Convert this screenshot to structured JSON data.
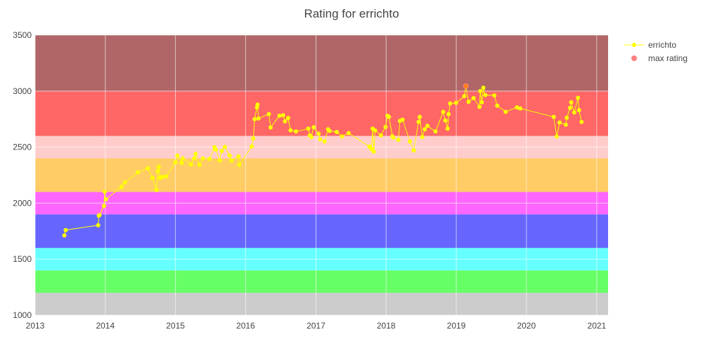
{
  "chart_data": {
    "type": "scatter",
    "title": "Rating for errichto",
    "xlabel": "",
    "ylabel": "",
    "xlim": [
      "2013-01-01",
      "2021-03-01"
    ],
    "ylim": [
      1000,
      3500
    ],
    "x_ticks": [
      "2013",
      "2014",
      "2015",
      "2016",
      "2017",
      "2018",
      "2019",
      "2020",
      "2021"
    ],
    "y_ticks": [
      1000,
      1500,
      2000,
      2500,
      3000,
      3500
    ],
    "grid": true,
    "legend_position": "top-right",
    "rating_bands": [
      {
        "from": 1000,
        "to": 1200,
        "color": "#cccccc"
      },
      {
        "from": 1200,
        "to": 1400,
        "color": "#66ff66"
      },
      {
        "from": 1400,
        "to": 1600,
        "color": "#66ffff"
      },
      {
        "from": 1600,
        "to": 1900,
        "color": "#6666ff"
      },
      {
        "from": 1900,
        "to": 2100,
        "color": "#ff66ff"
      },
      {
        "from": 2100,
        "to": 2400,
        "color": "#ffcc66"
      },
      {
        "from": 2400,
        "to": 2600,
        "color": "#ffcccc"
      },
      {
        "from": 2600,
        "to": 3000,
        "color": "#ff6666"
      },
      {
        "from": 3000,
        "to": 3500,
        "color": "#b06666"
      }
    ],
    "series": [
      {
        "name": "errichto",
        "color": "#ffff00",
        "points": [
          [
            "2013-06-02",
            1712
          ],
          [
            "2013-06-09",
            1760
          ],
          [
            "2013-11-25",
            1803
          ],
          [
            "2013-11-28",
            1888
          ],
          [
            "2013-12-02",
            1893
          ],
          [
            "2013-12-25",
            1975
          ],
          [
            "2013-12-29",
            2102
          ],
          [
            "2014-01-05",
            2035
          ],
          [
            "2014-03-26",
            2145
          ],
          [
            "2014-04-13",
            2185
          ],
          [
            "2014-06-19",
            2275
          ],
          [
            "2014-08-10",
            2310
          ],
          [
            "2014-09-03",
            2225
          ],
          [
            "2014-09-24",
            2118
          ],
          [
            "2014-10-01",
            2285
          ],
          [
            "2014-10-06",
            2325
          ],
          [
            "2014-10-12",
            2225
          ],
          [
            "2014-10-24",
            2235
          ],
          [
            "2014-11-14",
            2238
          ],
          [
            "2015-01-01",
            2365
          ],
          [
            "2015-01-11",
            2425
          ],
          [
            "2015-02-03",
            2360
          ],
          [
            "2015-02-08",
            2400
          ],
          [
            "2015-03-23",
            2345
          ],
          [
            "2015-04-08",
            2400
          ],
          [
            "2015-04-16",
            2440
          ],
          [
            "2015-05-06",
            2342
          ],
          [
            "2015-05-24",
            2400
          ],
          [
            "2015-06-27",
            2395
          ],
          [
            "2015-07-23",
            2500
          ],
          [
            "2015-07-30",
            2478
          ],
          [
            "2015-08-19",
            2382
          ],
          [
            "2015-08-30",
            2465
          ],
          [
            "2015-09-15",
            2502
          ],
          [
            "2015-10-10",
            2425
          ],
          [
            "2015-10-19",
            2380
          ],
          [
            "2015-11-25",
            2418
          ],
          [
            "2015-11-29",
            2342
          ],
          [
            "2016-02-02",
            2505
          ],
          [
            "2016-02-10",
            2578
          ],
          [
            "2016-02-17",
            2750
          ],
          [
            "2016-02-29",
            2855
          ],
          [
            "2016-03-03",
            2880
          ],
          [
            "2016-03-08",
            2755
          ],
          [
            "2016-05-01",
            2795
          ],
          [
            "2016-05-10",
            2675
          ],
          [
            "2016-06-25",
            2780
          ],
          [
            "2016-07-14",
            2785
          ],
          [
            "2016-07-24",
            2730
          ],
          [
            "2016-08-09",
            2760
          ],
          [
            "2016-08-22",
            2650
          ],
          [
            "2016-09-19",
            2640
          ],
          [
            "2016-11-22",
            2665
          ],
          [
            "2016-11-30",
            2605
          ],
          [
            "2016-12-08",
            2590
          ],
          [
            "2016-12-20",
            2678
          ],
          [
            "2017-01-15",
            2620
          ],
          [
            "2017-01-22",
            2570
          ],
          [
            "2017-02-15",
            2550
          ],
          [
            "2017-03-05",
            2660
          ],
          [
            "2017-03-13",
            2645
          ],
          [
            "2017-04-19",
            2635
          ],
          [
            "2017-05-17",
            2595
          ],
          [
            "2017-06-20",
            2625
          ],
          [
            "2017-10-06",
            2505
          ],
          [
            "2017-10-17",
            2482
          ],
          [
            "2017-10-23",
            2665
          ],
          [
            "2017-10-29",
            2460
          ],
          [
            "2017-11-05",
            2650
          ],
          [
            "2017-12-05",
            2605
          ],
          [
            "2017-12-29",
            2680
          ],
          [
            "2018-01-08",
            2780
          ],
          [
            "2018-01-16",
            2770
          ],
          [
            "2018-02-03",
            2597
          ],
          [
            "2018-02-07",
            2585
          ],
          [
            "2018-03-06",
            2565
          ],
          [
            "2018-03-14",
            2735
          ],
          [
            "2018-03-28",
            2745
          ],
          [
            "2018-05-05",
            2550
          ],
          [
            "2018-05-25",
            2470
          ],
          [
            "2018-06-19",
            2725
          ],
          [
            "2018-06-25",
            2770
          ],
          [
            "2018-07-08",
            2590
          ],
          [
            "2018-07-21",
            2660
          ],
          [
            "2018-08-04",
            2690
          ],
          [
            "2018-09-15",
            2640
          ],
          [
            "2018-10-25",
            2815
          ],
          [
            "2018-11-05",
            2738
          ],
          [
            "2018-11-17",
            2665
          ],
          [
            "2018-11-22",
            2795
          ],
          [
            "2018-11-30",
            2890
          ],
          [
            "2018-12-31",
            2895
          ],
          [
            "2019-02-12",
            2955
          ],
          [
            "2019-02-20",
            3045
          ],
          [
            "2019-03-06",
            2905
          ],
          [
            "2019-04-01",
            2938
          ],
          [
            "2019-05-02",
            2860
          ],
          [
            "2019-05-06",
            3000
          ],
          [
            "2019-05-14",
            2900
          ],
          [
            "2019-05-22",
            3030
          ],
          [
            "2019-06-01",
            2965
          ],
          [
            "2019-07-18",
            2962
          ],
          [
            "2019-08-02",
            2870
          ],
          [
            "2019-09-15",
            2815
          ],
          [
            "2019-11-13",
            2855
          ],
          [
            "2019-11-30",
            2845
          ],
          [
            "2020-05-22",
            2770
          ],
          [
            "2020-06-07",
            2595
          ],
          [
            "2020-06-22",
            2720
          ],
          [
            "2020-07-24",
            2700
          ],
          [
            "2020-07-29",
            2762
          ],
          [
            "2020-08-15",
            2850
          ],
          [
            "2020-08-21",
            2900
          ],
          [
            "2020-09-06",
            2810
          ],
          [
            "2020-09-25",
            2940
          ],
          [
            "2020-10-01",
            2830
          ],
          [
            "2020-10-14",
            2725
          ]
        ]
      },
      {
        "name": "max rating",
        "color": "#ff7f7f",
        "points": [
          [
            "2019-02-20",
            3045
          ]
        ]
      }
    ]
  }
}
